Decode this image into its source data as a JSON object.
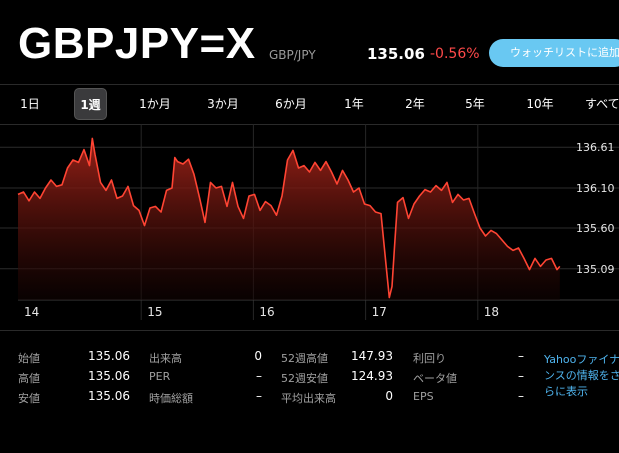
{
  "header": {
    "symbol": "GBPJPY=X",
    "pair": "GBP/JPY",
    "price": "135.06",
    "change": "-0.56%",
    "watch_button": "ウォッチリストに追加"
  },
  "tabs": [
    {
      "label": "1日",
      "active": false
    },
    {
      "label": "1週",
      "active": true
    },
    {
      "label": "1か月",
      "active": false
    },
    {
      "label": "3か月",
      "active": false
    },
    {
      "label": "6か月",
      "active": false
    },
    {
      "label": "1年",
      "active": false
    },
    {
      "label": "2年",
      "active": false
    },
    {
      "label": "5年",
      "active": false
    },
    {
      "label": "10年",
      "active": false
    },
    {
      "label": "すべて",
      "active": false
    }
  ],
  "colors": {
    "line": "#ff4433",
    "negative": "#ff4a4a",
    "accent": "#69c8f2",
    "link": "#4fb4ee"
  },
  "chart_data": {
    "type": "area",
    "x_labels": [
      "14",
      "15",
      "16",
      "17",
      "18"
    ],
    "y_ticks": [
      "136.61",
      "136.10",
      "135.60",
      "135.09"
    ],
    "y_tick_values": [
      136.61,
      136.1,
      135.6,
      135.09
    ],
    "ylim": [
      134.7,
      136.85
    ],
    "x_range": [
      0,
      100
    ],
    "grid": true,
    "series": [
      {
        "points": [
          [
            0,
            136.02
          ],
          [
            1,
            136.05
          ],
          [
            2,
            135.94
          ],
          [
            3,
            136.05
          ],
          [
            4,
            135.97
          ],
          [
            5,
            136.1
          ],
          [
            6,
            136.2
          ],
          [
            7,
            136.12
          ],
          [
            8,
            136.14
          ],
          [
            9,
            136.35
          ],
          [
            10,
            136.45
          ],
          [
            11,
            136.42
          ],
          [
            12,
            136.58
          ],
          [
            13,
            136.38
          ],
          [
            13.5,
            136.72
          ],
          [
            14,
            136.52
          ],
          [
            15,
            136.17
          ],
          [
            16,
            136.07
          ],
          [
            17,
            136.2
          ],
          [
            18,
            135.97
          ],
          [
            19,
            136.0
          ],
          [
            20,
            136.12
          ],
          [
            21,
            135.88
          ],
          [
            22,
            135.82
          ],
          [
            23,
            135.63
          ],
          [
            24,
            135.85
          ],
          [
            25,
            135.87
          ],
          [
            26,
            135.8
          ],
          [
            27,
            136.07
          ],
          [
            28,
            136.1
          ],
          [
            28.5,
            136.48
          ],
          [
            29,
            136.43
          ],
          [
            30,
            136.4
          ],
          [
            31,
            136.46
          ],
          [
            32,
            136.27
          ],
          [
            33,
            135.98
          ],
          [
            34,
            135.67
          ],
          [
            35,
            136.17
          ],
          [
            36,
            136.1
          ],
          [
            37,
            136.12
          ],
          [
            38,
            135.87
          ],
          [
            39,
            136.17
          ],
          [
            40,
            135.87
          ],
          [
            41,
            135.72
          ],
          [
            42,
            136.0
          ],
          [
            43,
            136.02
          ],
          [
            44,
            135.82
          ],
          [
            45,
            135.93
          ],
          [
            46,
            135.88
          ],
          [
            47,
            135.76
          ],
          [
            48,
            136.0
          ],
          [
            49,
            136.45
          ],
          [
            50,
            136.57
          ],
          [
            51,
            136.35
          ],
          [
            52,
            136.38
          ],
          [
            53,
            136.3
          ],
          [
            54,
            136.42
          ],
          [
            55,
            136.32
          ],
          [
            56,
            136.43
          ],
          [
            57,
            136.3
          ],
          [
            58,
            136.15
          ],
          [
            59,
            136.32
          ],
          [
            60,
            136.2
          ],
          [
            61,
            136.05
          ],
          [
            62,
            136.1
          ],
          [
            63,
            135.9
          ],
          [
            64,
            135.88
          ],
          [
            65,
            135.8
          ],
          [
            66,
            135.78
          ],
          [
            67,
            135.08
          ],
          [
            67.5,
            134.73
          ],
          [
            68,
            134.87
          ],
          [
            68.5,
            135.42
          ],
          [
            69,
            135.92
          ],
          [
            70,
            135.98
          ],
          [
            71,
            135.72
          ],
          [
            72,
            135.9
          ],
          [
            73,
            136.0
          ],
          [
            74,
            136.08
          ],
          [
            75,
            136.05
          ],
          [
            76,
            136.13
          ],
          [
            77,
            136.07
          ],
          [
            78,
            136.17
          ],
          [
            79,
            135.92
          ],
          [
            80,
            136.02
          ],
          [
            81,
            135.95
          ],
          [
            82,
            135.97
          ],
          [
            83,
            135.78
          ],
          [
            84,
            135.6
          ],
          [
            85,
            135.5
          ],
          [
            86,
            135.57
          ],
          [
            87,
            135.53
          ],
          [
            88,
            135.45
          ],
          [
            89,
            135.37
          ],
          [
            90,
            135.32
          ],
          [
            91,
            135.35
          ],
          [
            92,
            135.22
          ],
          [
            93,
            135.08
          ],
          [
            94,
            135.22
          ],
          [
            95,
            135.12
          ],
          [
            96,
            135.2
          ],
          [
            97,
            135.22
          ],
          [
            98,
            135.08
          ],
          [
            98.5,
            135.12
          ]
        ]
      }
    ]
  },
  "stats": [
    {
      "label": "始値",
      "value": "135.06"
    },
    {
      "label": "高値",
      "value": "135.06"
    },
    {
      "label": "安値",
      "value": "135.06"
    },
    {
      "label": "出来高",
      "value": "0"
    },
    {
      "label": "PER",
      "value": "–"
    },
    {
      "label": "時価総額",
      "value": "–"
    },
    {
      "label": "52週高値",
      "value": "147.93"
    },
    {
      "label": "52週安値",
      "value": "124.93"
    },
    {
      "label": "平均出来高",
      "value": "0"
    },
    {
      "label": "利回り",
      "value": "–"
    },
    {
      "label": "ベータ値",
      "value": "–"
    },
    {
      "label": "EPS",
      "value": "–"
    }
  ],
  "yahoo_link": "Yahooファイナンスの情報をさらに表示"
}
